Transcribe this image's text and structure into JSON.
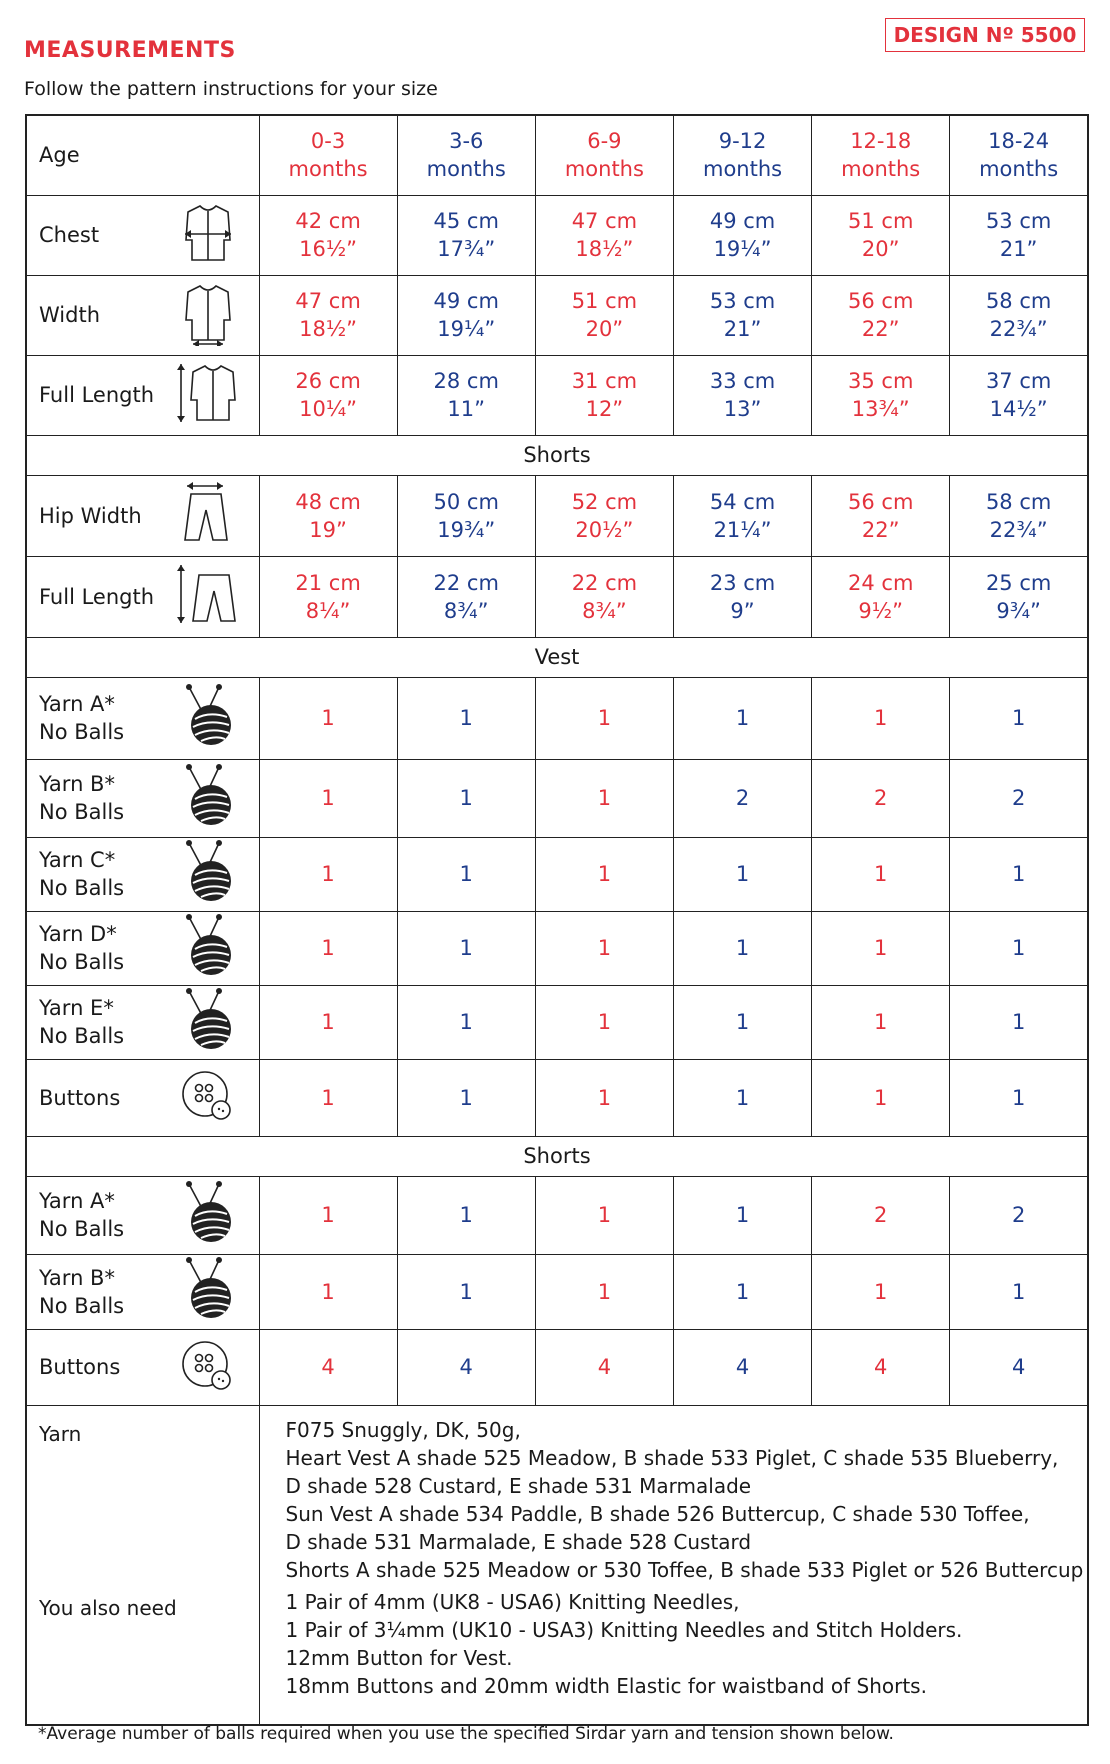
{
  "header": {
    "title": "MEASUREMENTS",
    "design": "DESIGN Nº 5500",
    "subtitle": "Follow the pattern instructions for your size"
  },
  "table": {
    "header": {
      "label": "Age",
      "sizes": [
        [
          "0-3",
          "months"
        ],
        [
          "3-6",
          "months"
        ],
        [
          "6-9",
          "months"
        ],
        [
          "9-12",
          "months"
        ],
        [
          "12-18",
          "months"
        ],
        [
          "18-24",
          "months"
        ]
      ]
    },
    "rows": [
      {
        "label": "Chest",
        "cells": [
          [
            "42 cm",
            "16½”"
          ],
          [
            "45 cm",
            "17¾”"
          ],
          [
            "47 cm",
            "18½”"
          ],
          [
            "49 cm",
            "19¼”"
          ],
          [
            "51 cm",
            "20”"
          ],
          [
            "53 cm",
            "21”"
          ]
        ]
      },
      {
        "label": "Width",
        "cells": [
          [
            "47 cm",
            "18½”"
          ],
          [
            "49 cm",
            "19¼”"
          ],
          [
            "51 cm",
            "20”"
          ],
          [
            "53 cm",
            "21”"
          ],
          [
            "56 cm",
            "22”"
          ],
          [
            "58 cm",
            "22¾”"
          ]
        ]
      },
      {
        "label": "Full Length",
        "cells": [
          [
            "26 cm",
            "10¼”"
          ],
          [
            "28 cm",
            "11”"
          ],
          [
            "31 cm",
            "12”"
          ],
          [
            "33 cm",
            "13”"
          ],
          [
            "35 cm",
            "13¾”"
          ],
          [
            "37 cm",
            "14½”"
          ]
        ]
      },
      {
        "section": "Shorts"
      },
      {
        "label": "Hip Width",
        "cells": [
          [
            "48 cm",
            "19”"
          ],
          [
            "50 cm",
            "19¾”"
          ],
          [
            "52 cm",
            "20½”"
          ],
          [
            "54 cm",
            "21¼”"
          ],
          [
            "56 cm",
            "22”"
          ],
          [
            "58 cm",
            "22¾”"
          ]
        ]
      },
      {
        "label": "Full Length",
        "cells": [
          [
            "21 cm",
            "8¼”"
          ],
          [
            "22 cm",
            "8¾”"
          ],
          [
            "22 cm",
            "8¾”"
          ],
          [
            "23 cm",
            "9”"
          ],
          [
            "24 cm",
            "9½”"
          ],
          [
            "25 cm",
            "9¾”"
          ]
        ]
      },
      {
        "section": "Vest"
      },
      {
        "label": [
          "Yarn A*",
          "No Balls"
        ],
        "cells": [
          1,
          1,
          1,
          1,
          1,
          1
        ]
      },
      {
        "label": [
          "Yarn B*",
          "No Balls"
        ],
        "cells": [
          1,
          1,
          1,
          2,
          2,
          2
        ]
      },
      {
        "label": [
          "Yarn C*",
          "No Balls"
        ],
        "cells": [
          1,
          1,
          1,
          1,
          1,
          1
        ]
      },
      {
        "label": [
          "Yarn D*",
          "No Balls"
        ],
        "cells": [
          1,
          1,
          1,
          1,
          1,
          1
        ]
      },
      {
        "label": [
          "Yarn E*",
          "No Balls"
        ],
        "cells": [
          1,
          1,
          1,
          1,
          1,
          1
        ]
      },
      {
        "label": "Buttons",
        "cells": [
          1,
          1,
          1,
          1,
          1,
          1
        ]
      },
      {
        "section": "Shorts"
      },
      {
        "label": [
          "Yarn A*",
          "No Balls"
        ],
        "cells": [
          1,
          1,
          1,
          1,
          2,
          2
        ]
      },
      {
        "label": [
          "Yarn B*",
          "No Balls"
        ],
        "cells": [
          1,
          1,
          1,
          1,
          1,
          1
        ]
      },
      {
        "label": "Buttons",
        "cells": [
          4,
          4,
          4,
          4,
          4,
          4
        ]
      }
    ]
  },
  "notes": {
    "yarn": {
      "label": "Yarn",
      "lines": [
        "F075 Snuggly, DK, 50g,",
        "Heart Vest A shade 525 Meadow, B shade 533 Piglet, C shade 535 Blueberry,",
        "D shade 528 Custard, E shade 531 Marmalade",
        "Sun Vest A shade 534 Paddle, B shade 526 Buttercup, C shade 530 Toffee,",
        "D shade 531 Marmalade, E shade 528 Custard",
        "Shorts A shade 525 Meadow or 530 Toffee, B shade 533 Piglet or 526 Buttercup"
      ]
    },
    "also": {
      "label": "You also need",
      "lines": [
        "1 Pair of 4mm (UK8 - USA6) Knitting Needles,",
        "1 Pair of 3¼mm (UK10 - USA3) Knitting Needles and Stitch Holders.",
        "12mm Button for Vest.",
        "18mm Buttons and 20mm width Elastic for waistband of Shorts."
      ]
    }
  },
  "footnote": "*Average number of balls required when you use the specified Sirdar yarn and tension shown below."
}
